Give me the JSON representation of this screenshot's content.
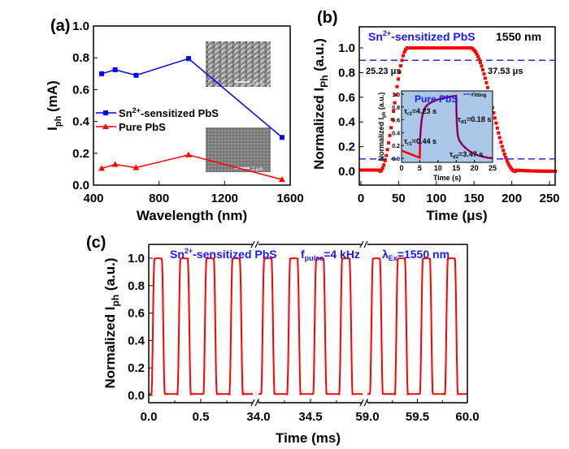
{
  "chart_data": [
    {
      "panel": "(a)",
      "type": "line",
      "xlabel": "Wavelength (nm)",
      "ylabel_main": "I",
      "ylabel_sub": "ph",
      "ylabel_unit": " (mA)",
      "xlim": [
        400,
        1600
      ],
      "ylim": [
        0,
        1.0
      ],
      "xticks": [
        400,
        800,
        1200,
        1600
      ],
      "yticks": [
        "0.0",
        "0.2",
        "0.4",
        "0.6",
        "0.8",
        "1.0"
      ],
      "legend_position": "center-left",
      "series": [
        {
          "name": "Sn2+-sensitized PbS",
          "name_parts": [
            "Sn",
            "2+",
            "-sensitized PbS"
          ],
          "marker": "square",
          "color": "#0000ff",
          "x": [
            450,
            532,
            660,
            980,
            1550
          ],
          "y": [
            0.7,
            0.725,
            0.69,
            0.795,
            0.3
          ]
        },
        {
          "name": "Pure PbS",
          "marker": "triangle",
          "color": "#ff0000",
          "x": [
            450,
            532,
            660,
            980,
            1550
          ],
          "y": [
            0.105,
            0.13,
            0.11,
            0.19,
            0.035
          ]
        }
      ],
      "insets": [
        {
          "scale_bar": "2 μm"
        },
        {
          "scale_bar": "2 μm"
        }
      ]
    },
    {
      "panel": "(b)",
      "type": "scatter",
      "xlabel": "Time (μs)",
      "ylabel_main": "Normalized I",
      "ylabel_sub": "Ph",
      "ylabel_unit": " (a.u.)",
      "xlim": [
        0,
        260
      ],
      "ylim": [
        -0.1,
        1.15
      ],
      "xticks": [
        0,
        50,
        100,
        150,
        200,
        250
      ],
      "yticks": [
        "0.0",
        "0.2",
        "0.4",
        "0.6",
        "0.8",
        "1.0"
      ],
      "color": "#ff0000",
      "rise_start": 25,
      "rise_end": 62,
      "fall_start": 145,
      "fall_end": 205,
      "reference_lines": [
        0.9,
        0.1
      ],
      "annotations": {
        "title_parts": [
          "Sn",
          "2+",
          "-sensitized PbS"
        ],
        "wavelength": "1550 nm",
        "rise_time": "25.23 μs",
        "fall_time": "37.53 μs"
      },
      "inset": {
        "title": "Pure PbS",
        "legend": "Fitting",
        "xlabel": "Time (s)",
        "ylabel_main": "Normalized I",
        "ylabel_sub": "ph",
        "ylabel_unit": " (a.u.)",
        "xlim": [
          0,
          25
        ],
        "ylim": [
          -0.05,
          1.05
        ],
        "xticks": [
          0,
          5,
          10,
          15,
          20,
          25
        ],
        "yticks": [
          "0.0",
          "0.2",
          "0.4",
          "0.6",
          "0.8",
          "1.0"
        ],
        "background": "#a9c7e6",
        "fit_color": "#0000ff",
        "data_color": "#ff0000",
        "light_on": 5,
        "light_off": 15,
        "labels": {
          "tr2": {
            "main": "τ",
            "sub": "r2",
            "value": "=4.23 s"
          },
          "tr1": {
            "main": "τ",
            "sub": "r1",
            "value": "=0.44 s"
          },
          "td1": {
            "main": "τ",
            "sub": "d1",
            "value": "=0.18 s"
          },
          "td2": {
            "main": "τ",
            "sub": "d2",
            "value": "=3.47 s"
          }
        }
      }
    },
    {
      "panel": "(c)",
      "type": "line",
      "xlabel": "Time (ms)",
      "ylabel_main": "Normalized I",
      "ylabel_sub": "ph",
      "ylabel_unit": " (a.u.)",
      "color": "#ff0000",
      "ylim": [
        -0.05,
        1.1
      ],
      "yticks": [
        "0.0",
        "0.2",
        "0.4",
        "0.6",
        "0.8",
        "1.0"
      ],
      "segments": [
        {
          "xlim": [
            0.0,
            1.0
          ],
          "xticks": [
            "0.0",
            "0.5"
          ]
        },
        {
          "xlim": [
            34.0,
            35.0
          ],
          "xticks": [
            "34.0",
            "34.5"
          ]
        },
        {
          "xlim": [
            59.0,
            60.0
          ],
          "xticks": [
            "59.0",
            "59.5",
            "60.0"
          ]
        }
      ],
      "pulse_frequency_khz": 4,
      "annotations": {
        "material_parts": [
          "Sn",
          "2+",
          "-sensitized PbS"
        ],
        "freq_parts": [
          "f",
          "pulse",
          "=4 kHz"
        ],
        "wl_parts": [
          "λ",
          "Ex",
          "=1550 nm"
        ]
      }
    }
  ]
}
